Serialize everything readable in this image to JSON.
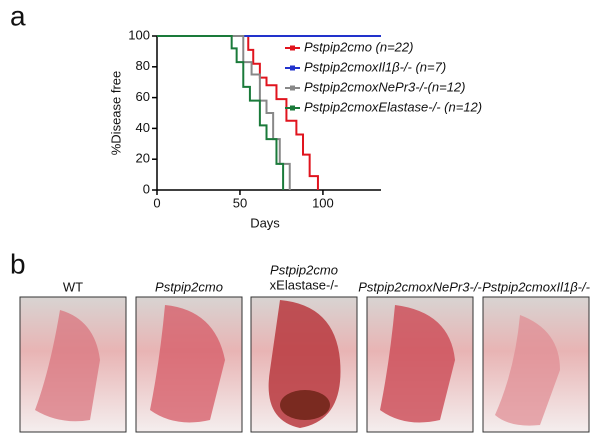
{
  "panel_a": {
    "label": "a"
  },
  "chart_data": {
    "type": "line",
    "xlabel": "Days",
    "ylabel": "%Disease free",
    "xlim": [
      0,
      135
    ],
    "xticks": [
      0,
      50,
      100
    ],
    "ylim": [
      0,
      100
    ],
    "yticks": [
      0,
      20,
      40,
      60,
      80,
      100
    ],
    "series": [
      {
        "name": "Pstpip2cmo (n=22)",
        "color": "#e0141e",
        "x": [
          0,
          55,
          55,
          58,
          58,
          62,
          62,
          66,
          66,
          72,
          72,
          78,
          78,
          84,
          84,
          88,
          88,
          92,
          92,
          97,
          97
        ],
        "values": [
          100,
          100,
          91,
          91,
          82,
          82,
          73,
          73,
          68,
          68,
          59,
          59,
          45,
          45,
          36,
          36,
          23,
          23,
          9,
          9,
          0
        ]
      },
      {
        "name": "Pstpip2cmoxIl1β-/- (n=7)",
        "color": "#2233cc",
        "x": [
          0,
          135
        ],
        "values": [
          100,
          100
        ]
      },
      {
        "name": "Pstpip2cmoxNePr3-/-(n=12)",
        "color": "#888888",
        "x": [
          0,
          52,
          52,
          57,
          57,
          62,
          62,
          66,
          66,
          70,
          70,
          74,
          74,
          80,
          80
        ],
        "values": [
          100,
          100,
          83,
          83,
          75,
          75,
          58,
          58,
          50,
          50,
          33,
          33,
          17,
          17,
          0
        ]
      },
      {
        "name": "Pstpip2cmoxElastase-/- (n=12)",
        "color": "#1a7a3a",
        "x": [
          0,
          45,
          45,
          48,
          48,
          52,
          52,
          56,
          56,
          62,
          62,
          66,
          66,
          72,
          72,
          76,
          76
        ],
        "values": [
          100,
          100,
          92,
          92,
          83,
          83,
          67,
          67,
          58,
          58,
          42,
          42,
          33,
          33,
          17,
          17,
          0
        ]
      }
    ]
  },
  "panel_b": {
    "label": "b",
    "photos": [
      {
        "label": "WT"
      },
      {
        "label": "Pstpip2cmo"
      },
      {
        "label": "Pstpip2cmo",
        "label_line2": "xElastase-/-"
      },
      {
        "label": "Pstpip2cmoxNePr3-/-"
      },
      {
        "label": "Pstpip2cmoxIl1β-/-"
      }
    ]
  }
}
